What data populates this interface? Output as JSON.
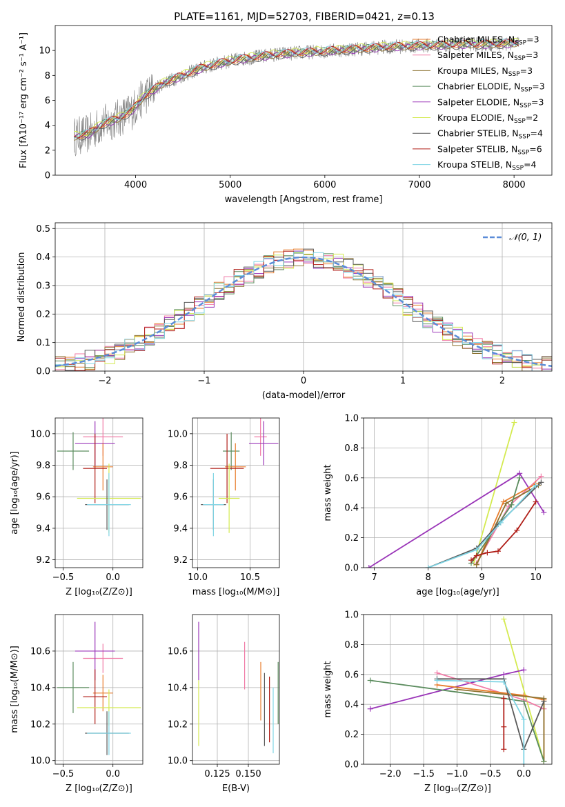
{
  "page": {
    "title": "PLATE=1161, MJD=52703, FIBERID=0421, z=0.13"
  },
  "colors": {
    "chabrier_miles": "#e87d2d",
    "salpeter_miles": "#f07aa6",
    "kroupa_miles": "#8c7230",
    "chabrier_elodie": "#5b8c5e",
    "salpeter_elodie": "#9a35b8",
    "kroupa_elodie": "#d4ea50",
    "chabrier_stelib": "#595959",
    "salpeter_stelib": "#b01e18",
    "kroupa_stelib": "#7fd4e4",
    "data": "#7f7f7f",
    "normal": "#5b8cd8",
    "grid": "#b0b0b0"
  },
  "chart_data": [
    {
      "type": "line",
      "xlabel": "wavelength [Angstrom, rest frame]",
      "ylabel": "Flux [fλ10⁻¹⁷ erg cm⁻² s⁻¹ A⁻¹]",
      "xlim": [
        3150,
        8400
      ],
      "ylim": [
        0,
        12
      ],
      "xticks": [
        "4000",
        "5000",
        "6000",
        "7000",
        "8000"
      ],
      "yticks": [
        "0",
        "2",
        "4",
        "6",
        "8",
        "10"
      ],
      "legend_position": "right",
      "legend": [
        {
          "label": "Chabrier MILES, N_SSP=3",
          "color_key": "chabrier_miles"
        },
        {
          "label": "Salpeter MILES, N_SSP=3",
          "color_key": "salpeter_miles"
        },
        {
          "label": "Kroupa MILES, N_SSP=3",
          "color_key": "kroupa_miles"
        },
        {
          "label": "Chabrier ELODIE, N_SSP=3",
          "color_key": "chabrier_elodie"
        },
        {
          "label": "Salpeter ELODIE, N_SSP=3",
          "color_key": "salpeter_elodie"
        },
        {
          "label": "Kroupa ELODIE, N_SSP=2",
          "color_key": "kroupa_elodie"
        },
        {
          "label": "Chabrier STELIB, N_SSP=4",
          "color_key": "chabrier_stelib"
        },
        {
          "label": "Salpeter STELIB, N_SSP=6",
          "color_key": "salpeter_stelib"
        },
        {
          "label": "Kroupa STELIB, N_SSP=4",
          "color_key": "kroupa_stelib"
        }
      ],
      "continuum": {
        "x": [
          3350,
          3500,
          3650,
          3800,
          3950,
          4100,
          4300,
          4500,
          4700,
          4900,
          5100,
          5300,
          5500,
          5700,
          5900,
          6100,
          6300,
          6500,
          6700,
          6900,
          7100,
          7300,
          7500,
          7700,
          7900,
          8050
        ],
        "y": [
          3.1,
          3.3,
          4.1,
          4.5,
          5.1,
          6.4,
          7.4,
          8.0,
          8.6,
          9.0,
          9.3,
          9.5,
          9.7,
          9.8,
          9.9,
          10.0,
          10.1,
          10.2,
          10.3,
          10.35,
          10.4,
          10.45,
          10.5,
          10.5,
          10.55,
          10.6
        ]
      },
      "fit_offsets": [
        0.0,
        0.1,
        -0.05,
        0.05,
        -0.1,
        0.15,
        -0.15,
        0.08,
        0.12
      ]
    },
    {
      "type": "line",
      "xlabel": "(data-model)/error",
      "ylabel": "Normed distribution",
      "xlim": [
        -2.5,
        2.5
      ],
      "ylim": [
        0,
        0.52
      ],
      "xticks": [
        "−2",
        "−1",
        "0",
        "1",
        "2"
      ],
      "yticks": [
        "0.0",
        "0.1",
        "0.2",
        "0.3",
        "0.4",
        "0.5"
      ],
      "legend_position": "upper right",
      "normal_label": "𝒩(0, 1)",
      "bin_width": 0.1
    },
    {
      "type": "scatter",
      "xlabel": "Z [log₁₀(Z/Z⊙)]",
      "ylabel": "age  [log₁₀(age/yr)]",
      "xlim": [
        -0.58,
        0.3
      ],
      "ylim": [
        9.15,
        10.1
      ],
      "xticks": [
        "−0.5",
        "0.0"
      ],
      "yticks": [
        "9.2",
        "9.4",
        "9.6",
        "9.8",
        "10.0"
      ],
      "points": [
        {
          "x": -0.1,
          "y": 9.98,
          "xerr": 0.2,
          "yerr": 0.12,
          "color_key": "salpeter_miles"
        },
        {
          "x": -0.18,
          "y": 9.94,
          "xerr": 0.2,
          "yerr": 0.14,
          "color_key": "salpeter_elodie"
        },
        {
          "x": -0.4,
          "y": 9.89,
          "xerr": 0.16,
          "yerr": 0.12,
          "color_key": "chabrier_elodie"
        },
        {
          "x": -0.1,
          "y": 9.79,
          "xerr": 0.1,
          "yerr": 0.15,
          "color_key": "chabrier_miles"
        },
        {
          "x": -0.18,
          "y": 9.78,
          "xerr": 0.12,
          "yerr": 0.22,
          "color_key": "salpeter_stelib"
        },
        {
          "x": -0.04,
          "y": 9.59,
          "xerr": 0.32,
          "yerr": 0.22,
          "color_key": "kroupa_elodie"
        },
        {
          "x": -0.06,
          "y": 9.55,
          "xerr": 0.22,
          "yerr": 0.16,
          "color_key": "chabrier_stelib"
        },
        {
          "x": -0.04,
          "y": 9.55,
          "xerr": 0.22,
          "yerr": 0.2,
          "color_key": "kroupa_stelib"
        }
      ]
    },
    {
      "type": "scatter",
      "xlabel": "mass [log₁₀(M/M⊙)]",
      "ylabel": "",
      "xlim": [
        9.95,
        10.78
      ],
      "ylim": [
        9.15,
        10.1
      ],
      "xticks": [
        "10.0",
        "10.5"
      ],
      "yticks": [
        "9.2",
        "9.4",
        "9.6",
        "9.8",
        "10.0"
      ],
      "points": [
        {
          "x": 10.6,
          "y": 9.98,
          "xerr": 0.06,
          "yerr": 0.12,
          "color_key": "salpeter_miles"
        },
        {
          "x": 10.63,
          "y": 9.94,
          "xerr": 0.14,
          "yerr": 0.14,
          "color_key": "salpeter_elodie"
        },
        {
          "x": 10.32,
          "y": 9.89,
          "xerr": 0.08,
          "yerr": 0.12,
          "color_key": "chabrier_elodie"
        },
        {
          "x": 10.36,
          "y": 9.79,
          "xerr": 0.1,
          "yerr": 0.15,
          "color_key": "chabrier_miles"
        },
        {
          "x": 10.28,
          "y": 9.78,
          "xerr": 0.16,
          "yerr": 0.22,
          "color_key": "salpeter_stelib"
        },
        {
          "x": 10.3,
          "y": 9.59,
          "xerr": 0.1,
          "yerr": 0.22,
          "color_key": "kroupa_elodie"
        },
        {
          "x": 10.15,
          "y": 9.55,
          "xerr": 0.12,
          "yerr": 0.16,
          "color_key": "chabrier_stelib"
        },
        {
          "x": 10.15,
          "y": 9.55,
          "xerr": 0.1,
          "yerr": 0.2,
          "color_key": "kroupa_stelib"
        }
      ]
    },
    {
      "type": "line",
      "xlabel": "age  [log₁₀(age/yr)]",
      "ylabel": "mass weight",
      "xlim": [
        6.8,
        10.3
      ],
      "ylim": [
        0,
        1
      ],
      "xticks": [
        "7",
        "8",
        "9",
        "10"
      ],
      "yticks": [
        "0.0",
        "0.2",
        "0.4",
        "0.6",
        "0.8",
        "1.0"
      ],
      "series": [
        {
          "color_key": "kroupa_elodie",
          "x": [
            8.85,
            9.6
          ],
          "y": [
            0.03,
            0.97
          ]
        },
        {
          "color_key": "salpeter_elodie",
          "x": [
            6.9,
            9.7,
            10.15
          ],
          "y": [
            0.0,
            0.63,
            0.37
          ]
        },
        {
          "color_key": "salpeter_miles",
          "x": [
            8.9,
            9.5,
            10.1
          ],
          "y": [
            0.03,
            0.41,
            0.61
          ]
        },
        {
          "color_key": "chabrier_miles",
          "x": [
            8.9,
            9.4,
            10.0
          ],
          "y": [
            0.02,
            0.44,
            0.56
          ]
        },
        {
          "color_key": "kroupa_miles",
          "x": [
            8.9,
            9.45,
            10.05
          ],
          "y": [
            0.02,
            0.43,
            0.55
          ]
        },
        {
          "color_key": "chabrier_elodie",
          "x": [
            8.8,
            9.55,
            9.7
          ],
          "y": [
            0.03,
            0.42,
            0.6
          ]
        },
        {
          "color_key": "salpeter_stelib",
          "x": [
            8.8,
            8.9,
            9.1,
            9.3,
            9.65,
            10.0
          ],
          "y": [
            0.05,
            0.08,
            0.1,
            0.11,
            0.25,
            0.44
          ]
        },
        {
          "color_key": "chabrier_stelib",
          "x": [
            8.0,
            8.9,
            9.3,
            10.1
          ],
          "y": [
            0.0,
            0.13,
            0.29,
            0.57
          ]
        },
        {
          "color_key": "kroupa_stelib",
          "x": [
            8.0,
            8.9,
            9.35,
            10.0
          ],
          "y": [
            0.0,
            0.12,
            0.3,
            0.55
          ]
        }
      ]
    },
    {
      "type": "scatter",
      "xlabel": "Z [log₁₀(Z/Z⊙)]",
      "ylabel": "mass [log₁₀(M/M⊙)]",
      "xlim": [
        -0.58,
        0.3
      ],
      "ylim": [
        9.98,
        10.8
      ],
      "xticks": [
        "−0.5",
        "0.0"
      ],
      "yticks": [
        "10.0",
        "10.2",
        "10.4",
        "10.6"
      ],
      "points": [
        {
          "x": -0.1,
          "y": 10.56,
          "xerr": 0.2,
          "yerr": 0.08,
          "color_key": "salpeter_miles"
        },
        {
          "x": -0.18,
          "y": 10.6,
          "xerr": 0.2,
          "yerr": 0.16,
          "color_key": "salpeter_elodie"
        },
        {
          "x": -0.4,
          "y": 10.4,
          "xerr": 0.16,
          "yerr": 0.14,
          "color_key": "chabrier_elodie"
        },
        {
          "x": -0.1,
          "y": 10.37,
          "xerr": 0.1,
          "yerr": 0.1,
          "color_key": "chabrier_miles"
        },
        {
          "x": -0.18,
          "y": 10.35,
          "xerr": 0.12,
          "yerr": 0.15,
          "color_key": "salpeter_stelib"
        },
        {
          "x": -0.04,
          "y": 10.29,
          "xerr": 0.32,
          "yerr": 0.1,
          "color_key": "kroupa_elodie"
        },
        {
          "x": -0.06,
          "y": 10.15,
          "xerr": 0.22,
          "yerr": 0.12,
          "color_key": "chabrier_stelib"
        },
        {
          "x": -0.04,
          "y": 10.15,
          "xerr": 0.22,
          "yerr": 0.12,
          "color_key": "kroupa_stelib"
        }
      ]
    },
    {
      "type": "scatter",
      "xlabel": "E(B-V)",
      "ylabel": "",
      "xlim": [
        0.105,
        0.175
      ],
      "ylim": [
        9.98,
        10.8
      ],
      "xticks": [
        "0.125",
        "0.150"
      ],
      "yticks": [
        "10.0",
        "10.2",
        "10.4",
        "10.6"
      ],
      "points": [
        {
          "x": 0.11,
          "y": 10.6,
          "yerr": 0.16,
          "color_key": "salpeter_elodie"
        },
        {
          "x": 0.11,
          "y": 10.26,
          "yerr": 0.18,
          "color_key": "kroupa_elodie"
        },
        {
          "x": 0.147,
          "y": 10.52,
          "yerr": 0.13,
          "color_key": "salpeter_miles"
        },
        {
          "x": 0.16,
          "y": 10.38,
          "yerr": 0.16,
          "color_key": "chabrier_miles"
        },
        {
          "x": 0.163,
          "y": 10.28,
          "yerr": 0.2,
          "color_key": "chabrier_stelib"
        },
        {
          "x": 0.167,
          "y": 10.28,
          "yerr": 0.18,
          "color_key": "salpeter_stelib"
        },
        {
          "x": 0.17,
          "y": 10.22,
          "yerr": 0.18,
          "color_key": "kroupa_stelib"
        },
        {
          "x": 0.174,
          "y": 10.37,
          "yerr": 0.17,
          "color_key": "chabrier_elodie"
        }
      ]
    },
    {
      "type": "line",
      "xlabel": "Z [log₁₀(Z/Z⊙)]",
      "ylabel": "mass weight",
      "xlim": [
        -2.4,
        0.42
      ],
      "ylim": [
        0,
        1
      ],
      "xticks": [
        "−2.0",
        "−1.5",
        "−1.0",
        "−0.5",
        "0.0"
      ],
      "yticks": [
        "0.0",
        "0.2",
        "0.4",
        "0.6",
        "0.8",
        "1.0"
      ],
      "series": [
        {
          "color_key": "kroupa_elodie",
          "x": [
            -0.3,
            0.3
          ],
          "y": [
            0.97,
            0.02
          ]
        },
        {
          "color_key": "salpeter_elodie",
          "x": [
            -2.3,
            -0.3,
            0.0
          ],
          "y": [
            0.37,
            0.6,
            0.63
          ]
        },
        {
          "color_key": "salpeter_miles",
          "x": [
            -1.3,
            0.0,
            0.3
          ],
          "y": [
            0.61,
            0.43,
            0.37
          ]
        },
        {
          "color_key": "chabrier_miles",
          "x": [
            -1.3,
            0.0,
            0.3,
            0.3
          ],
          "y": [
            0.53,
            0.46,
            0.43,
            0.02
          ]
        },
        {
          "color_key": "kroupa_miles",
          "x": [
            -1.0,
            0.3,
            0.3
          ],
          "y": [
            0.5,
            0.44,
            0.02
          ]
        },
        {
          "color_key": "chabrier_elodie",
          "x": [
            -2.3,
            -0.3,
            0.0,
            0.3
          ],
          "y": [
            0.56,
            0.44,
            0.42,
            0.02
          ]
        },
        {
          "color_key": "salpeter_stelib",
          "x": [
            -0.3,
            -0.3,
            -0.3,
            -0.3
          ],
          "y": [
            0.1,
            0.25,
            0.44,
            0.44
          ]
        },
        {
          "color_key": "chabrier_stelib",
          "x": [
            -1.3,
            -0.3,
            0.0,
            0.3
          ],
          "y": [
            0.57,
            0.57,
            0.1,
            0.42
          ]
        },
        {
          "color_key": "kroupa_stelib",
          "x": [
            -1.3,
            -0.3,
            0.0,
            0.0
          ],
          "y": [
            0.56,
            0.55,
            0.3,
            0.0
          ]
        }
      ]
    }
  ]
}
